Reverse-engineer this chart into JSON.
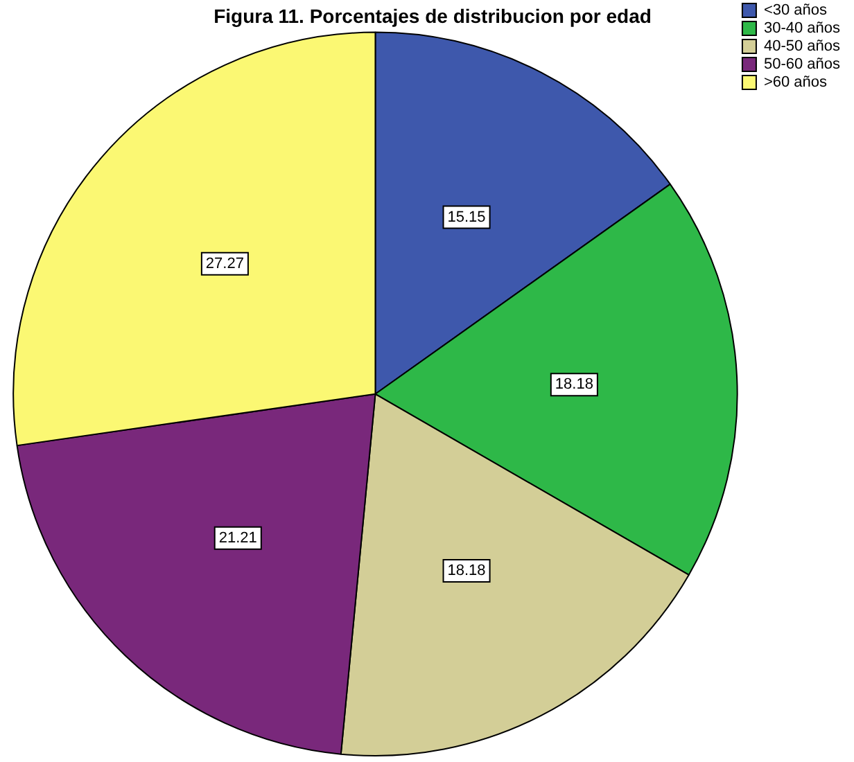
{
  "chart_data": {
    "type": "pie",
    "title": "Figura 11. Porcentajes de distribucion por edad",
    "categories": [
      "<30 años",
      "30-40 años",
      "40-50 años",
      "50-60 años",
      ">60 años"
    ],
    "values": [
      15.15,
      18.18,
      18.18,
      21.21,
      27.27
    ],
    "colors": [
      "#3e58ac",
      "#2eb848",
      "#d3ce97",
      "#79287b",
      "#fbf873"
    ],
    "data_labels": true,
    "legend": "top right"
  }
}
